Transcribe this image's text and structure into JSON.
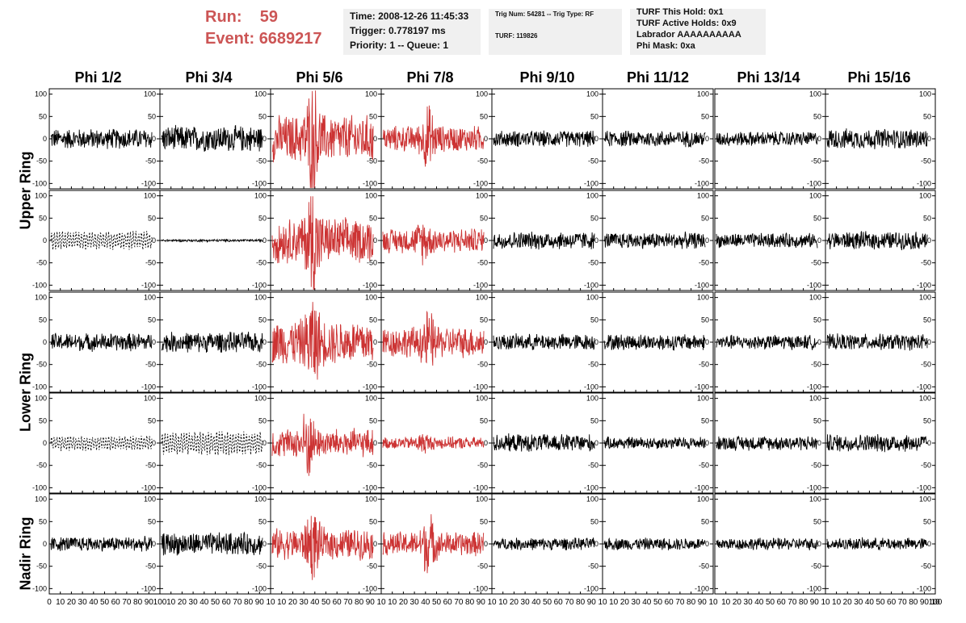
{
  "run_info": {
    "run_label": "Run:",
    "run_value": "59",
    "event_label": "Event:",
    "event_value": "6689217"
  },
  "time_box": {
    "time": "Time: 2008-12-26 11:45:33",
    "trigger": "Trigger: 0.778197 ms",
    "priority": "Priority: 1 -- Queue: 1"
  },
  "trig_box": {
    "trig": "Trig Num: 54281 -- Trig Type: RF",
    "turf": "TURF: 119826"
  },
  "turf_box": {
    "hold": "TURF This Hold: 0x1",
    "active": "TURF Active Holds: 0x9",
    "labrador": "Labrador AAAAAAAAAA",
    "phimask": "Phi Mask: 0xa"
  },
  "columns": [
    "Phi 1/2",
    "Phi 3/4",
    "Phi 5/6",
    "Phi 7/8",
    "Phi 9/10",
    "Phi 11/12",
    "Phi 13/14",
    "Phi 15/16"
  ],
  "rings": [
    "Upper Ring",
    "Lower Ring",
    "Nadir Ring"
  ],
  "colors": {
    "normal": "#000000",
    "triggered": "#cc3333",
    "header_red": "#cc5555",
    "info_bg": "#f0f0f0"
  },
  "chart_data": {
    "type": "line",
    "description_of_grid": "5 rows x 8 columns of waveform panels",
    "ytick_labels": [
      "100",
      "50",
      "0",
      "-50",
      "-100"
    ],
    "yticks": [
      100,
      50,
      0,
      -50,
      -100
    ],
    "ylim": [
      -112,
      112
    ],
    "xlim": [
      0,
      100
    ],
    "xtick_labels_per_panel": [
      "0",
      "10",
      "20",
      "30",
      "40",
      "50",
      "60",
      "70",
      "80",
      "90",
      "100"
    ],
    "xtick_labels_trimmed": [
      "10",
      "20",
      "30",
      "40",
      "50",
      "60",
      "70",
      "80",
      "90",
      "10"
    ],
    "row_rings": [
      0,
      0,
      1,
      1,
      2
    ],
    "highlighted_columns": [
      2,
      3
    ],
    "dashed_panels": [
      [
        1,
        0
      ],
      [
        3,
        0
      ],
      [
        3,
        1
      ]
    ],
    "panel_amplitudes": [
      [
        25,
        32,
        58,
        32,
        20,
        20,
        18,
        25
      ],
      [
        22,
        3,
        55,
        30,
        22,
        20,
        18,
        22
      ],
      [
        22,
        25,
        55,
        38,
        20,
        20,
        18,
        20
      ],
      [
        18,
        28,
        35,
        15,
        22,
        15,
        18,
        22
      ],
      [
        18,
        28,
        38,
        30,
        15,
        15,
        15,
        15
      ]
    ],
    "panel_bursts": [
      [
        0,
        0,
        [
          40,
          90
        ],
        [
          45,
          55
        ],
        0,
        0,
        0,
        0
      ],
      [
        0,
        0,
        [
          40,
          95
        ],
        [
          40,
          30
        ],
        0,
        0,
        0,
        0
      ],
      [
        0,
        0,
        [
          40,
          70
        ],
        [
          45,
          45
        ],
        0,
        0,
        0,
        0
      ],
      [
        0,
        0,
        [
          35,
          60
        ],
        [
          40,
          15
        ],
        0,
        0,
        0,
        0
      ],
      [
        0,
        0,
        [
          40,
          55
        ],
        [
          45,
          55
        ],
        0,
        0,
        0,
        0
      ]
    ],
    "samples_per_trace": 260
  }
}
